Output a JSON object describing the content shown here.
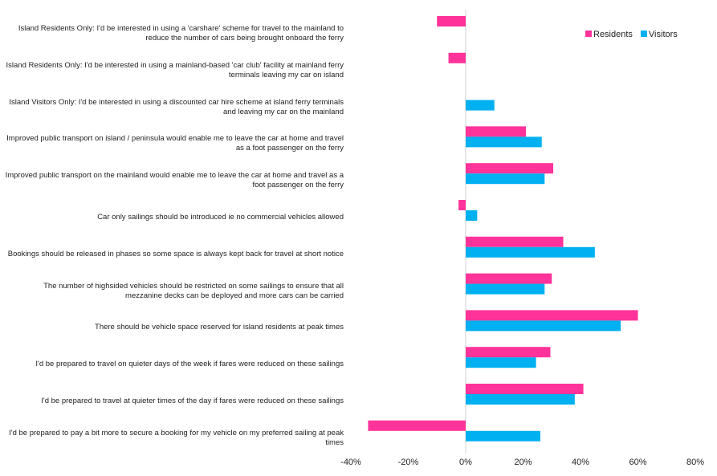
{
  "chart_data": {
    "type": "hbar",
    "categories": [
      "Island Residents Only: I'd be interested in using a 'carshare' scheme for travel to the mainland to reduce the number of cars being brought onboard the ferry",
      "Island Residents Only: I'd be interested in using a mainland-based 'car club' facility at mainland ferry terminals leaving my car on island",
      "Island Visitors Only: I'd be interested in using a discounted car hire scheme at island ferry terminals and leaving my car on the mainland",
      "Improved public transport on island / peninsula would enable me to leave the car at home and travel as a foot passenger on the ferry",
      "Improved public transport on the mainland would enable me to leave the car at home and travel as a foot passenger on the ferry",
      "Car only sailings should be introduced ie no commercial vehicles allowed",
      "Bookings should be released in phases so some space is always kept back for travel at short notice",
      "The number of highsided vehicles should be restricted on some sailings to ensure that all mezzanine decks can be deployed and more cars can be carried",
      "There should be vehicle space reserved for island residents at peak times",
      "I'd be prepared to travel on quieter days of the week if fares were reduced on these sailings",
      "I'd be prepared to travel at quieter times of the day if fares were reduced on these sailings",
      "I'd be prepared to pay a bit more to secure a booking for my vehicle on my preferred sailing at peak times"
    ],
    "series": [
      {
        "name": "Residents",
        "color": "#ff3399",
        "values": [
          -10,
          -6,
          null,
          21,
          30.5,
          -2.5,
          34,
          30,
          60,
          29.5,
          41,
          -34
        ]
      },
      {
        "name": "Visitors",
        "color": "#00b0f0",
        "values": [
          null,
          null,
          10,
          26.5,
          27.5,
          4,
          45,
          27.5,
          54,
          24.5,
          38,
          26
        ]
      }
    ],
    "xlim": [
      -40,
      80
    ],
    "xticks": [
      {
        "value": -40,
        "label": "-40%"
      },
      {
        "value": -20,
        "label": "-20%"
      },
      {
        "value": 0,
        "label": "0%"
      },
      {
        "value": 20,
        "label": "20%"
      },
      {
        "value": 40,
        "label": "40%"
      },
      {
        "value": 60,
        "label": "60%"
      },
      {
        "value": 80,
        "label": "80%"
      }
    ],
    "legend": "top-right"
  }
}
